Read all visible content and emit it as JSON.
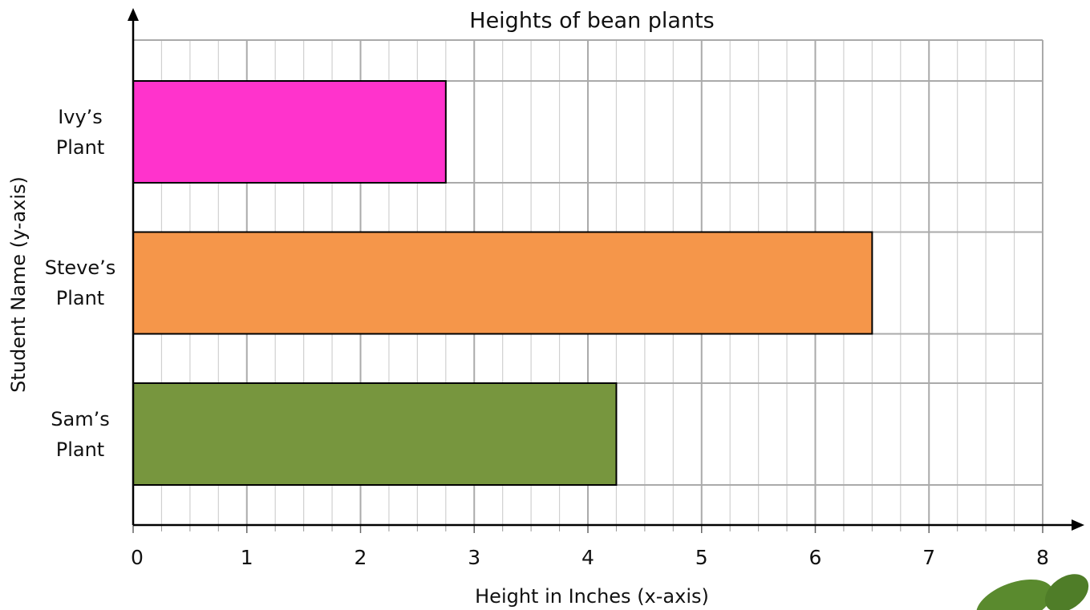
{
  "chart_data": {
    "type": "hbar",
    "title": "Heights of bean plants",
    "x_label": "Height in Inches (x-axis)",
    "y_label": "Student Name (y-axis)",
    "categories": [
      "Ivy’s Plant",
      "Steve’s Plant",
      "Sam’s Plant"
    ],
    "values": [
      2.75,
      6.5,
      4.25
    ],
    "colors": [
      "#ff33cc",
      "#f5964a",
      "#77963e"
    ],
    "xlim": [
      0,
      8
    ],
    "xticks": [
      0,
      1,
      2,
      3,
      4,
      5,
      6,
      7,
      8
    ],
    "grid": true
  }
}
